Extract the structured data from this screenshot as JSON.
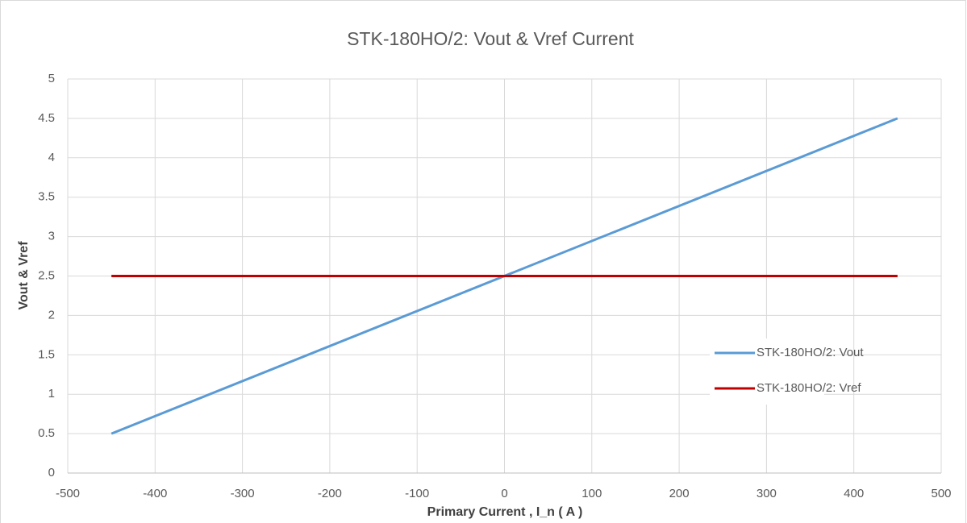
{
  "chart_data": {
    "type": "line",
    "title": "STK-180HO/2: Vout & Vref Current",
    "x_label": "Primary Current , I_n ( A )",
    "y_label": "Vout & Vref",
    "x": [
      -450,
      450
    ],
    "series": [
      {
        "name": "STK-180HO/2: Vout",
        "color": "#5b9bd5",
        "values": [
          0.5,
          4.5
        ]
      },
      {
        "name": "STK-180HO/2: Vref",
        "color": "#c00000",
        "values": [
          2.5,
          2.5
        ]
      }
    ],
    "xlim": [
      -500,
      500
    ],
    "xticks": [
      -500,
      -400,
      -300,
      -200,
      -100,
      0,
      100,
      200,
      300,
      400,
      500
    ],
    "ylim": [
      0,
      5
    ],
    "yticks": [
      0,
      0.5,
      1,
      1.5,
      2,
      2.5,
      3,
      3.5,
      4,
      4.5,
      5
    ],
    "grid": true,
    "legend": "right"
  }
}
